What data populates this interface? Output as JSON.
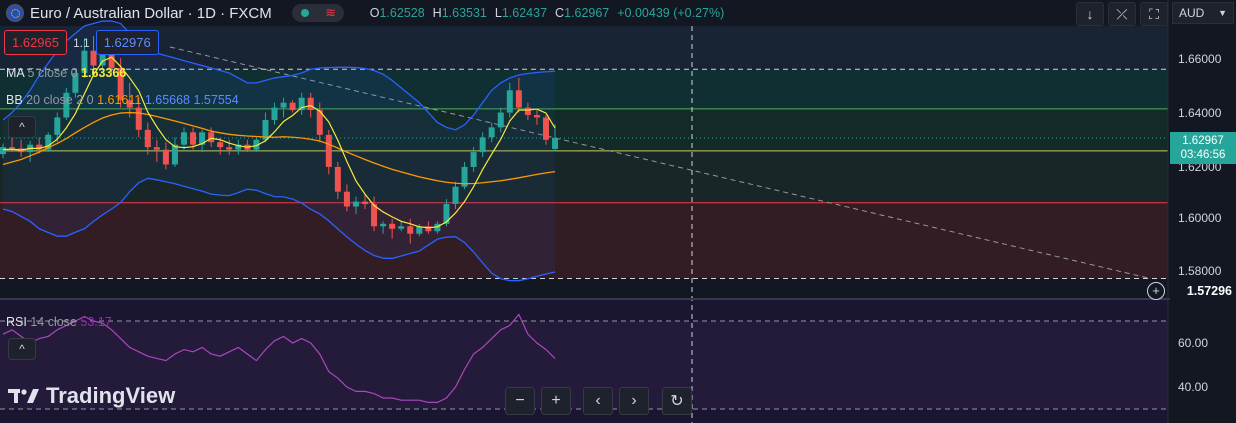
{
  "header": {
    "title": "Euro / Australian Dollar · 1D · FXCM",
    "ohlc": {
      "o_label": "O",
      "o": "1.62528",
      "h_label": "H",
      "h": "1.63531",
      "l_label": "L",
      "l": "1.62437",
      "c_label": "C",
      "c": "1.62967",
      "change": "+0.00439 (+0.27%)"
    }
  },
  "trade": {
    "sell": "1.62965",
    "spread": "1.1",
    "buy": "1.62976"
  },
  "indicators": {
    "ma": {
      "name": "MA",
      "params": "5 close 0",
      "value": "1.63366",
      "color": "#f5eb3b"
    },
    "bb": {
      "name": "BB",
      "params": "20 close 2 0",
      "basis": "1.61611",
      "upper": "1.65668",
      "lower": "1.57554",
      "basis_color": "#ff9800",
      "band_color": "#2962ff"
    },
    "rsi": {
      "name": "RSI",
      "params": "14 close",
      "value": "53.17",
      "color": "#9c27b0"
    }
  },
  "price_axis": {
    "currency": "AUD",
    "labels": [
      "1.66000",
      "1.64000",
      "1.62000",
      "1.60000",
      "1.58000"
    ],
    "current_price": "1.62967",
    "countdown": "03:46:56",
    "crosshair_price": "1.57296"
  },
  "rsi_axis": {
    "labels": [
      "60.00",
      "40.00"
    ]
  },
  "brand": {
    "logo_text": "TradingView"
  },
  "colors": {
    "up": "#26a69a",
    "down": "#ef5350",
    "bg": "#131722"
  },
  "chart_data": {
    "type": "candlestick",
    "ylim": [
      1.565,
      1.675
    ],
    "candles": [
      {
        "o": 1.6232,
        "h": 1.6275,
        "l": 1.6215,
        "c": 1.626
      },
      {
        "o": 1.626,
        "h": 1.63,
        "l": 1.624,
        "c": 1.6255
      },
      {
        "o": 1.6255,
        "h": 1.629,
        "l": 1.622,
        "c": 1.624
      },
      {
        "o": 1.624,
        "h": 1.6285,
        "l": 1.62,
        "c": 1.627
      },
      {
        "o": 1.627,
        "h": 1.63,
        "l": 1.6235,
        "c": 1.625
      },
      {
        "o": 1.625,
        "h": 1.632,
        "l": 1.624,
        "c": 1.631
      },
      {
        "o": 1.631,
        "h": 1.64,
        "l": 1.628,
        "c": 1.638
      },
      {
        "o": 1.638,
        "h": 1.65,
        "l": 1.637,
        "c": 1.648
      },
      {
        "o": 1.648,
        "h": 1.658,
        "l": 1.646,
        "c": 1.656
      },
      {
        "o": 1.656,
        "h": 1.67,
        "l": 1.654,
        "c": 1.665
      },
      {
        "o": 1.665,
        "h": 1.671,
        "l": 1.656,
        "c": 1.659
      },
      {
        "o": 1.659,
        "h": 1.67,
        "l": 1.657,
        "c": 1.666
      },
      {
        "o": 1.666,
        "h": 1.669,
        "l": 1.656,
        "c": 1.658
      },
      {
        "o": 1.658,
        "h": 1.662,
        "l": 1.642,
        "c": 1.645
      },
      {
        "o": 1.645,
        "h": 1.652,
        "l": 1.638,
        "c": 1.642
      },
      {
        "o": 1.642,
        "h": 1.646,
        "l": 1.63,
        "c": 1.633
      },
      {
        "o": 1.633,
        "h": 1.636,
        "l": 1.623,
        "c": 1.626
      },
      {
        "o": 1.626,
        "h": 1.629,
        "l": 1.62,
        "c": 1.625
      },
      {
        "o": 1.625,
        "h": 1.628,
        "l": 1.617,
        "c": 1.619
      },
      {
        "o": 1.619,
        "h": 1.63,
        "l": 1.618,
        "c": 1.627
      },
      {
        "o": 1.627,
        "h": 1.634,
        "l": 1.625,
        "c": 1.632
      },
      {
        "o": 1.632,
        "h": 1.634,
        "l": 1.625,
        "c": 1.627
      },
      {
        "o": 1.627,
        "h": 1.633,
        "l": 1.624,
        "c": 1.632
      },
      {
        "o": 1.632,
        "h": 1.634,
        "l": 1.626,
        "c": 1.628
      },
      {
        "o": 1.628,
        "h": 1.63,
        "l": 1.623,
        "c": 1.626
      },
      {
        "o": 1.626,
        "h": 1.629,
        "l": 1.623,
        "c": 1.625
      },
      {
        "o": 1.625,
        "h": 1.629,
        "l": 1.623,
        "c": 1.627
      },
      {
        "o": 1.627,
        "h": 1.629,
        "l": 1.624,
        "c": 1.625
      },
      {
        "o": 1.625,
        "h": 1.63,
        "l": 1.624,
        "c": 1.629
      },
      {
        "o": 1.629,
        "h": 1.64,
        "l": 1.628,
        "c": 1.637
      },
      {
        "o": 1.637,
        "h": 1.644,
        "l": 1.635,
        "c": 1.642
      },
      {
        "o": 1.642,
        "h": 1.646,
        "l": 1.638,
        "c": 1.644
      },
      {
        "o": 1.644,
        "h": 1.645,
        "l": 1.64,
        "c": 1.641
      },
      {
        "o": 1.641,
        "h": 1.648,
        "l": 1.639,
        "c": 1.646
      },
      {
        "o": 1.646,
        "h": 1.648,
        "l": 1.638,
        "c": 1.641
      },
      {
        "o": 1.641,
        "h": 1.644,
        "l": 1.628,
        "c": 1.631
      },
      {
        "o": 1.631,
        "h": 1.633,
        "l": 1.615,
        "c": 1.618
      },
      {
        "o": 1.618,
        "h": 1.62,
        "l": 1.605,
        "c": 1.608
      },
      {
        "o": 1.608,
        "h": 1.611,
        "l": 1.6,
        "c": 1.602
      },
      {
        "o": 1.602,
        "h": 1.606,
        "l": 1.599,
        "c": 1.604
      },
      {
        "o": 1.604,
        "h": 1.607,
        "l": 1.601,
        "c": 1.603
      },
      {
        "o": 1.603,
        "h": 1.606,
        "l": 1.592,
        "c": 1.594
      },
      {
        "o": 1.594,
        "h": 1.596,
        "l": 1.591,
        "c": 1.595
      },
      {
        "o": 1.595,
        "h": 1.597,
        "l": 1.589,
        "c": 1.593
      },
      {
        "o": 1.593,
        "h": 1.596,
        "l": 1.592,
        "c": 1.594
      },
      {
        "o": 1.594,
        "h": 1.597,
        "l": 1.587,
        "c": 1.591
      },
      {
        "o": 1.591,
        "h": 1.595,
        "l": 1.59,
        "c": 1.594
      },
      {
        "o": 1.594,
        "h": 1.596,
        "l": 1.591,
        "c": 1.592
      },
      {
        "o": 1.592,
        "h": 1.596,
        "l": 1.591,
        "c": 1.595
      },
      {
        "o": 1.595,
        "h": 1.605,
        "l": 1.594,
        "c": 1.603
      },
      {
        "o": 1.603,
        "h": 1.612,
        "l": 1.601,
        "c": 1.61
      },
      {
        "o": 1.61,
        "h": 1.62,
        "l": 1.609,
        "c": 1.618
      },
      {
        "o": 1.618,
        "h": 1.626,
        "l": 1.616,
        "c": 1.624
      },
      {
        "o": 1.624,
        "h": 1.632,
        "l": 1.622,
        "c": 1.63
      },
      {
        "o": 1.63,
        "h": 1.636,
        "l": 1.628,
        "c": 1.634
      },
      {
        "o": 1.634,
        "h": 1.642,
        "l": 1.632,
        "c": 1.64
      },
      {
        "o": 1.64,
        "h": 1.652,
        "l": 1.638,
        "c": 1.649
      },
      {
        "o": 1.649,
        "h": 1.654,
        "l": 1.64,
        "c": 1.642
      },
      {
        "o": 1.642,
        "h": 1.644,
        "l": 1.637,
        "c": 1.639
      },
      {
        "o": 1.639,
        "h": 1.641,
        "l": 1.635,
        "c": 1.638
      },
      {
        "o": 1.638,
        "h": 1.639,
        "l": 1.627,
        "c": 1.629
      },
      {
        "o": 1.6253,
        "h": 1.6353,
        "l": 1.6244,
        "c": 1.6297
      }
    ],
    "ma5": [
      1.625,
      1.6252,
      1.6248,
      1.6255,
      1.6255,
      1.6265,
      1.6292,
      1.6338,
      1.6396,
      1.6476,
      1.6552,
      1.6608,
      1.6624,
      1.6586,
      1.654,
      1.6488,
      1.6402,
      1.6342,
      1.629,
      1.6262,
      1.6258,
      1.6262,
      1.6274,
      1.6296,
      1.629,
      1.6276,
      1.6266,
      1.626,
      1.6266,
      1.6286,
      1.6322,
      1.6364,
      1.6388,
      1.642,
      1.6428,
      1.6406,
      1.6362,
      1.6288,
      1.6202,
      1.6124,
      1.607,
      1.6024,
      1.5998,
      1.5978,
      1.596,
      1.595,
      1.5938,
      1.5934,
      1.5938,
      1.5958,
      1.5994,
      1.604,
      1.61,
      1.617,
      1.6232,
      1.6292,
      1.6366,
      1.641,
      1.641,
      1.6414,
      1.6398,
      1.6337
    ],
    "bb_upper": [
      1.637,
      1.64,
      1.644,
      1.649,
      1.655,
      1.66,
      1.665,
      1.669,
      1.672,
      1.675,
      1.676,
      1.677,
      1.677,
      1.676,
      1.672,
      1.668,
      1.665,
      1.664,
      1.663,
      1.662,
      1.661,
      1.66,
      1.659,
      1.658,
      1.657,
      1.656,
      1.654,
      1.652,
      1.652,
      1.653,
      1.654,
      1.6545,
      1.655,
      1.656,
      1.6575,
      1.658,
      1.6582,
      1.6583,
      1.6583,
      1.6582,
      1.6578,
      1.657,
      1.6555,
      1.653,
      1.65,
      1.647,
      1.644,
      1.64,
      1.636,
      1.634,
      1.633,
      1.635,
      1.639,
      1.644,
      1.649,
      1.652,
      1.654,
      1.6552,
      1.6558,
      1.6562,
      1.6565,
      1.6567
    ],
    "bb_basis": [
      1.619,
      1.62,
      1.621,
      1.6225,
      1.624,
      1.6258,
      1.6275,
      1.6295,
      1.6318,
      1.634,
      1.636,
      1.6378,
      1.639,
      1.6398,
      1.64,
      1.6398,
      1.6392,
      1.6384,
      1.6375,
      1.6366,
      1.6356,
      1.6346,
      1.6336,
      1.6325,
      1.6318,
      1.6312,
      1.6308,
      1.6305,
      1.6303,
      1.6301,
      1.63,
      1.6302,
      1.63,
      1.6297,
      1.6292,
      1.6285,
      1.6272,
      1.6256,
      1.624,
      1.6225,
      1.621,
      1.6196,
      1.6183,
      1.617,
      1.616,
      1.615,
      1.614,
      1.6132,
      1.6124,
      1.6118,
      1.6114,
      1.6112,
      1.6113,
      1.6116,
      1.612,
      1.6124,
      1.613,
      1.6136,
      1.6143,
      1.615,
      1.6156,
      1.6161
    ],
    "bb_lower": [
      1.601,
      1.6,
      1.598,
      1.596,
      1.593,
      1.5915,
      1.59,
      1.59,
      1.5916,
      1.593,
      1.596,
      1.5986,
      1.601,
      1.6036,
      1.608,
      1.6116,
      1.6134,
      1.6128,
      1.612,
      1.6112,
      1.6102,
      1.6092,
      1.6082,
      1.607,
      1.6066,
      1.6064,
      1.6076,
      1.609,
      1.6086,
      1.6072,
      1.606,
      1.6059,
      1.605,
      1.6034,
      1.6009,
      1.599,
      1.5962,
      1.5929,
      1.5897,
      1.5868,
      1.5842,
      1.5822,
      1.5811,
      1.581,
      1.582,
      1.583,
      1.584,
      1.5864,
      1.5888,
      1.5896,
      1.5898,
      1.5874,
      1.5836,
      1.5792,
      1.575,
      1.5728,
      1.572,
      1.572,
      1.5728,
      1.5738,
      1.5747,
      1.5755
    ],
    "rsi": [
      64,
      66,
      63,
      60,
      62,
      63,
      66,
      68,
      70,
      72,
      70,
      69,
      66,
      62,
      58,
      56,
      54,
      53,
      52,
      55,
      57,
      56,
      58,
      55,
      54,
      56,
      58,
      55,
      52,
      57,
      61,
      63,
      60,
      62,
      60,
      55,
      47,
      44,
      40,
      38,
      38,
      37,
      35,
      35,
      34,
      34,
      34,
      33,
      33,
      35,
      40,
      48,
      55,
      58,
      62,
      66,
      68,
      73,
      64,
      60,
      57,
      53
    ]
  }
}
